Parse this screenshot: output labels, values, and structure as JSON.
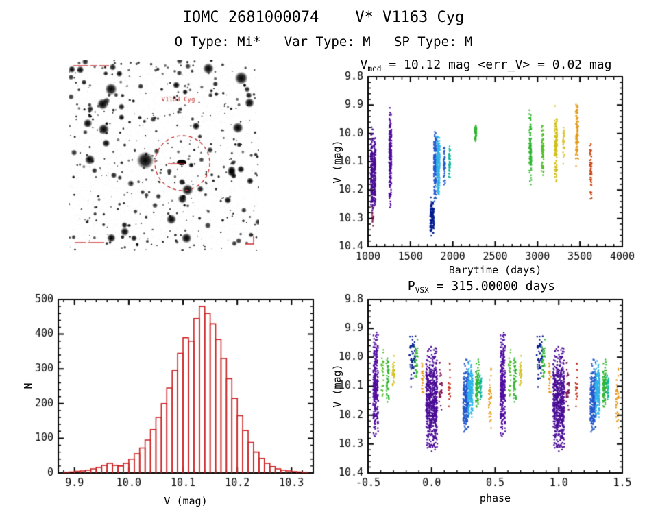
{
  "page": {
    "title": "IOMC 2681000074    V* V1163 Cyg",
    "subtitle": "O Type: Mi*   Var Type: M   SP Type: M"
  },
  "finder": {
    "target_label": "V1163 Cyg",
    "marker_color": "#cc2a2a"
  },
  "chart_data": [
    {
      "id": "lightcurve",
      "type": "scatter",
      "seed": 1,
      "title_segments": [
        {
          "t": "V"
        },
        {
          "t": "med",
          "sub": true
        },
        {
          "t": " = 10.12 mag <err_V> = 0.02 mag"
        }
      ],
      "v_med_mag": 10.12,
      "err_v_mag": 0.02,
      "xlabel": "Barytime (days)",
      "ylabel": "V (mag)",
      "xlim": [
        1000,
        4000
      ],
      "ylim": [
        9.8,
        10.4
      ],
      "y_inverted": true,
      "xticks": [
        1000,
        1500,
        2000,
        2500,
        3000,
        3500,
        4000
      ],
      "xtick_labels": [
        "1000",
        "1500",
        "2000",
        "2500",
        "3000",
        "3500",
        "4000"
      ],
      "yticks": [
        9.8,
        9.9,
        10.0,
        10.1,
        10.2,
        10.3,
        10.4
      ],
      "ytick_labels": [
        "9.8",
        "9.9",
        "10.0",
        "10.1",
        "10.2",
        "10.3",
        "10.4"
      ],
      "x_minor": 5,
      "y_minor": 5,
      "clusters": [
        {
          "x": 1045,
          "dx": 12,
          "ymin": 9.97,
          "ymax": 10.3,
          "color": "#4a0c96",
          "n": 170
        },
        {
          "x": 1078,
          "dx": 12,
          "ymin": 9.99,
          "ymax": 10.28,
          "color": "#4a0c96",
          "n": 150
        },
        {
          "x": 1056,
          "dx": 8,
          "ymin": 10.25,
          "ymax": 10.33,
          "color": "#7c0f4e",
          "n": 14
        },
        {
          "x": 1262,
          "dx": 14,
          "ymin": 9.9,
          "ymax": 10.27,
          "color": "#500ca0",
          "n": 210
        },
        {
          "x": 1755,
          "dx": 22,
          "ymin": 10.22,
          "ymax": 10.37,
          "color": "#001b8f",
          "n": 110
        },
        {
          "x": 1790,
          "dx": 14,
          "ymin": 9.99,
          "ymax": 10.26,
          "color": "#2257cc",
          "n": 150
        },
        {
          "x": 1828,
          "dx": 18,
          "ymin": 10.0,
          "ymax": 10.23,
          "color": "#2fb4e8",
          "n": 210
        },
        {
          "x": 1900,
          "dx": 10,
          "ymin": 10.03,
          "ymax": 10.19,
          "color": "#2257cc",
          "n": 45
        },
        {
          "x": 1962,
          "dx": 9,
          "ymin": 10.04,
          "ymax": 10.16,
          "color": "#0cb49a",
          "n": 40
        },
        {
          "x": 2268,
          "dx": 11,
          "ymin": 9.96,
          "ymax": 10.03,
          "color": "#2db52d",
          "n": 55
        },
        {
          "x": 2915,
          "dx": 13,
          "ymin": 9.91,
          "ymax": 10.2,
          "color": "#2db52d",
          "n": 95
        },
        {
          "x": 3060,
          "dx": 13,
          "ymin": 9.96,
          "ymax": 10.17,
          "color": "#53c02a",
          "n": 75
        },
        {
          "x": 3215,
          "dx": 16,
          "ymin": 9.9,
          "ymax": 10.2,
          "color": "#d0c01a",
          "n": 120
        },
        {
          "x": 3308,
          "dx": 9,
          "ymin": 9.94,
          "ymax": 10.12,
          "color": "#d8c428",
          "n": 32
        },
        {
          "x": 3465,
          "dx": 16,
          "ymin": 9.89,
          "ymax": 10.12,
          "color": "#e39a18",
          "n": 95
        },
        {
          "x": 3628,
          "dx": 11,
          "ymin": 10.02,
          "ymax": 10.25,
          "color": "#cc4714",
          "n": 60
        }
      ]
    },
    {
      "id": "histogram",
      "type": "bar",
      "xlabel": "V (mag)",
      "ylabel": "N",
      "xlim": [
        9.87,
        10.34
      ],
      "ylim": [
        0,
        500
      ],
      "y_inverted": false,
      "xticks": [
        9.9,
        10.0,
        10.1,
        10.2,
        10.3
      ],
      "xtick_labels": [
        "9.9",
        "10.0",
        "10.1",
        "10.2",
        "10.3"
      ],
      "yticks": [
        0,
        100,
        200,
        300,
        400,
        500
      ],
      "ytick_labels": [
        "0",
        "100",
        "200",
        "300",
        "400",
        "500"
      ],
      "x_minor": 5,
      "y_minor": 5,
      "bar_color": "#cc1f1f",
      "bin_start": 9.88,
      "bin_width": 0.01,
      "counts": [
        2,
        3,
        5,
        6,
        8,
        12,
        16,
        22,
        28,
        22,
        20,
        28,
        40,
        55,
        72,
        95,
        125,
        160,
        200,
        245,
        295,
        345,
        390,
        380,
        445,
        480,
        460,
        430,
        385,
        330,
        272,
        215,
        165,
        122,
        88,
        60,
        42,
        28,
        18,
        12,
        8,
        6,
        4,
        3,
        2
      ]
    },
    {
      "id": "phase",
      "type": "scatter",
      "seed": 2,
      "title_segments": [
        {
          "t": "P"
        },
        {
          "t": "VSX",
          "sub": true
        },
        {
          "t": " = 315.00000 days"
        }
      ],
      "period_days": 315.0,
      "xlabel": "phase",
      "ylabel": "V (mag)",
      "xlim": [
        -0.5,
        1.5
      ],
      "ylim": [
        9.8,
        10.4
      ],
      "y_inverted": true,
      "repeat_period": 1,
      "xticks": [
        -0.5,
        0.0,
        0.5,
        1.0,
        1.5
      ],
      "xtick_labels": [
        "-0.5",
        "0.0",
        "0.5",
        "1.0",
        "1.5"
      ],
      "yticks": [
        9.8,
        9.9,
        10.0,
        10.1,
        10.2,
        10.3,
        10.4
      ],
      "ytick_labels": [
        "9.8",
        "9.9",
        "10.0",
        "10.1",
        "10.2",
        "10.3",
        "10.4"
      ],
      "x_minor": 5,
      "y_minor": 5,
      "clusters": [
        {
          "p": 0.0,
          "dp": 0.045,
          "ymin": 9.96,
          "ymax": 10.34,
          "color": "#4a0c96",
          "n": 620
        },
        {
          "p": 0.07,
          "dp": 0.012,
          "ymin": 10.0,
          "ymax": 10.22,
          "color": "#7c0f4e",
          "n": 28
        },
        {
          "p": 0.14,
          "dp": 0.008,
          "ymin": 10.0,
          "ymax": 10.2,
          "color": "#c42814",
          "n": 16
        },
        {
          "p": 0.27,
          "dp": 0.022,
          "ymin": 10.0,
          "ymax": 10.28,
          "color": "#2257cc",
          "n": 230
        },
        {
          "p": 0.305,
          "dp": 0.018,
          "ymin": 10.01,
          "ymax": 10.22,
          "color": "#2fb4e8",
          "n": 190
        },
        {
          "p": 0.36,
          "dp": 0.013,
          "ymin": 10.0,
          "ymax": 10.19,
          "color": "#2db52d",
          "n": 85
        },
        {
          "p": 0.385,
          "dp": 0.008,
          "ymin": 10.04,
          "ymax": 10.15,
          "color": "#0cb49a",
          "n": 30
        },
        {
          "p": 0.46,
          "dp": 0.01,
          "ymin": 10.0,
          "ymax": 10.26,
          "color": "#e39a18",
          "n": 35
        },
        {
          "p": 0.56,
          "dp": 0.02,
          "ymin": 9.9,
          "ymax": 10.3,
          "color": "#500ca0",
          "n": 300
        },
        {
          "p": 0.615,
          "dp": 0.01,
          "ymin": 9.95,
          "ymax": 10.14,
          "color": "#53c02a",
          "n": 26
        },
        {
          "p": 0.655,
          "dp": 0.011,
          "ymin": 9.96,
          "ymax": 10.17,
          "color": "#2db52d",
          "n": 48
        },
        {
          "p": 0.7,
          "dp": 0.009,
          "ymin": 9.99,
          "ymax": 10.12,
          "color": "#d0c01a",
          "n": 26
        },
        {
          "p": 0.85,
          "dp": 0.025,
          "ymin": 9.89,
          "ymax": 10.12,
          "color": "#001b8f",
          "n": 55
        },
        {
          "p": 0.88,
          "dp": 0.012,
          "ymin": 9.93,
          "ymax": 10.1,
          "color": "#2db52d",
          "n": 30
        },
        {
          "p": 0.93,
          "dp": 0.009,
          "ymin": 10.0,
          "ymax": 10.16,
          "color": "#e39a18",
          "n": 22
        }
      ]
    }
  ]
}
